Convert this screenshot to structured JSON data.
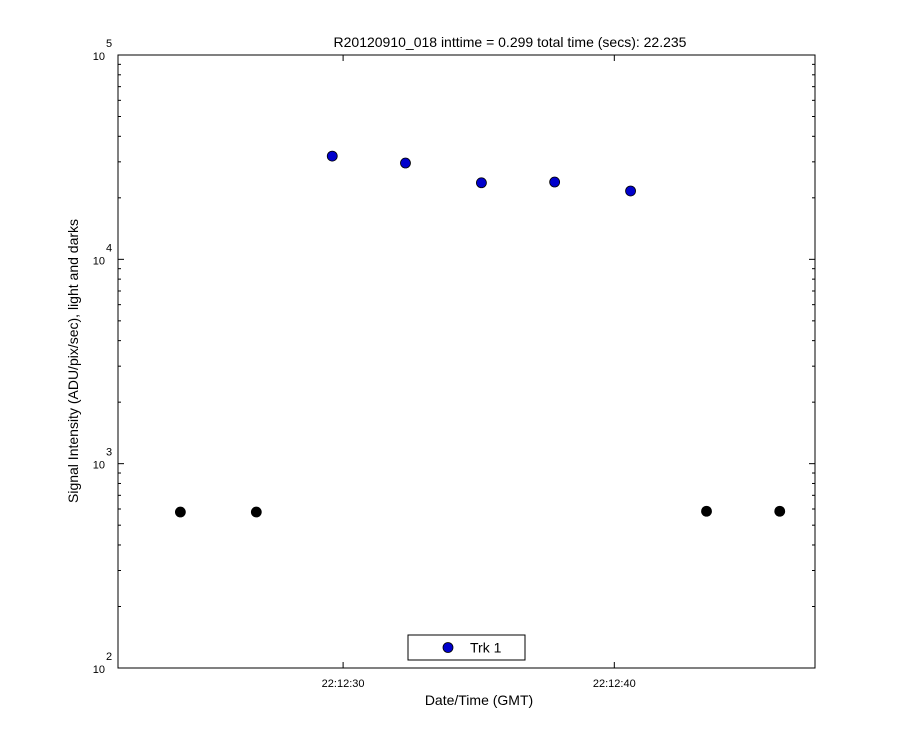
{
  "chart_data": {
    "type": "scatter",
    "title": "R20120910_018 inttime = 0.299 total time (secs): 22.235",
    "xlabel": "Date/Time (GMT)",
    "ylabel": "Signal Intensity (ADU/pix/sec), light and darks",
    "log_y": true,
    "xlim": [
      79941.7,
      79967.4
    ],
    "xticks": [
      {
        "value": 79950,
        "label": "22:12:30"
      },
      {
        "value": 79960,
        "label": "22:12:40"
      }
    ],
    "ylim": [
      100,
      100000
    ],
    "yticks": [
      {
        "value": 100,
        "label": "10",
        "exponent": "2"
      },
      {
        "value": 1000,
        "label": "10",
        "exponent": "3"
      },
      {
        "value": 10000,
        "label": "10",
        "exponent": "4"
      },
      {
        "value": 100000,
        "label": "10",
        "exponent": "5"
      }
    ],
    "legend": "bottom",
    "series": [
      {
        "name": "Trk 1",
        "color": "#0000cc",
        "x": [
          79949.6,
          79952.3,
          79955.1,
          79957.8,
          79960.6
        ],
        "values": [
          32000,
          29600,
          23700,
          23900,
          21600
        ]
      },
      {
        "color": "#000000",
        "x": [
          79944.0,
          79946.8,
          79963.4,
          79966.1
        ],
        "values": [
          580,
          580,
          585,
          585
        ]
      }
    ]
  }
}
